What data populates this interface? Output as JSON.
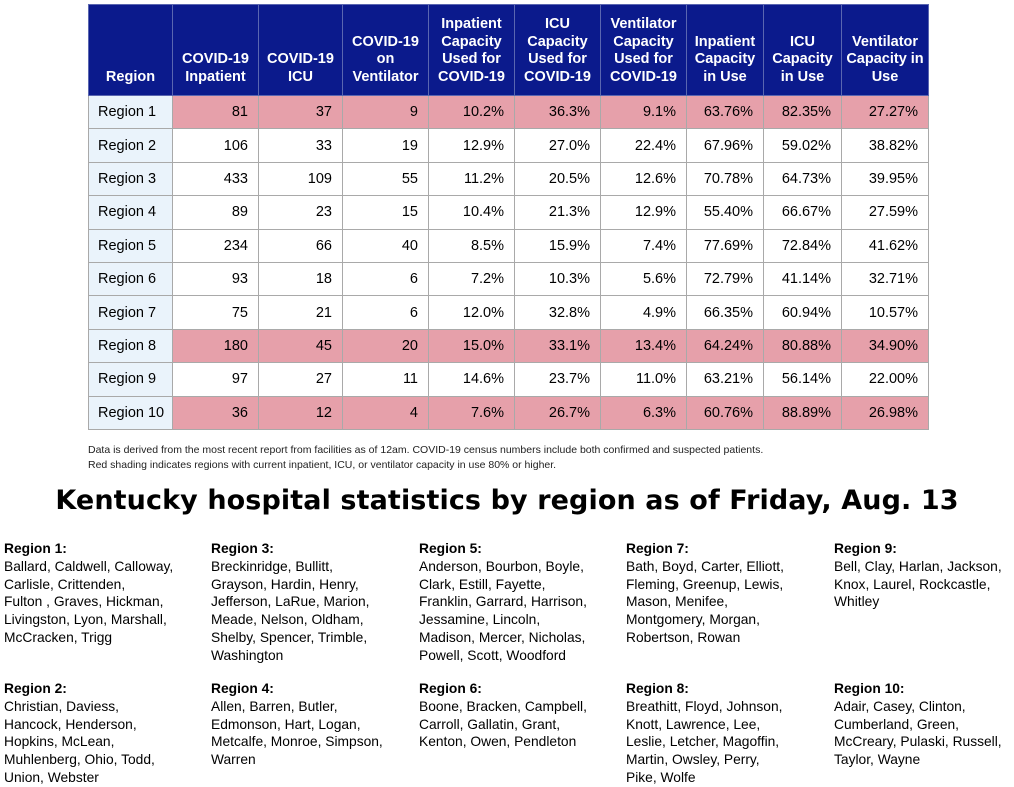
{
  "table": {
    "headers": [
      "Region",
      "COVID-19 Inpatient",
      "COVID-19 ICU",
      "COVID-19 on Ventilator",
      "Inpatient Capacity Used for COVID-19",
      "ICU Capacity Used for COVID-19",
      "Ventilator Capacity Used for COVID-19",
      "Inpatient Capacity in Use",
      "ICU Capacity in Use",
      "Ventilator Capacity in Use"
    ],
    "rows": [
      {
        "highlight": true,
        "cells": [
          "Region 1",
          "81",
          "37",
          "9",
          "10.2%",
          "36.3%",
          "9.1%",
          "63.76%",
          "82.35%",
          "27.27%"
        ]
      },
      {
        "highlight": false,
        "cells": [
          "Region 2",
          "106",
          "33",
          "19",
          "12.9%",
          "27.0%",
          "22.4%",
          "67.96%",
          "59.02%",
          "38.82%"
        ]
      },
      {
        "highlight": false,
        "cells": [
          "Region 3",
          "433",
          "109",
          "55",
          "11.2%",
          "20.5%",
          "12.6%",
          "70.78%",
          "64.73%",
          "39.95%"
        ]
      },
      {
        "highlight": false,
        "cells": [
          "Region 4",
          "89",
          "23",
          "15",
          "10.4%",
          "21.3%",
          "12.9%",
          "55.40%",
          "66.67%",
          "27.59%"
        ]
      },
      {
        "highlight": false,
        "cells": [
          "Region 5",
          "234",
          "66",
          "40",
          "8.5%",
          "15.9%",
          "7.4%",
          "77.69%",
          "72.84%",
          "41.62%"
        ]
      },
      {
        "highlight": false,
        "cells": [
          "Region 6",
          "93",
          "18",
          "6",
          "7.2%",
          "10.3%",
          "5.6%",
          "72.79%",
          "41.14%",
          "32.71%"
        ]
      },
      {
        "highlight": false,
        "cells": [
          "Region 7",
          "75",
          "21",
          "6",
          "12.0%",
          "32.8%",
          "4.9%",
          "66.35%",
          "60.94%",
          "10.57%"
        ]
      },
      {
        "highlight": true,
        "cells": [
          "Region 8",
          "180",
          "45",
          "20",
          "15.0%",
          "33.1%",
          "13.4%",
          "64.24%",
          "80.88%",
          "34.90%"
        ]
      },
      {
        "highlight": false,
        "cells": [
          "Region 9",
          "97",
          "27",
          "11",
          "14.6%",
          "23.7%",
          "11.0%",
          "63.21%",
          "56.14%",
          "22.00%"
        ]
      },
      {
        "highlight": true,
        "cells": [
          "Region 10",
          "36",
          "12",
          "4",
          "7.6%",
          "26.7%",
          "6.3%",
          "60.76%",
          "88.89%",
          "26.98%"
        ]
      }
    ]
  },
  "notes": {
    "line1": "Data is derived from the most recent report from facilities as of 12am. COVID-19 census numbers include both confirmed and suspected patients.",
    "line2": "Red shading indicates regions with current inpatient, ICU, or ventilator capacity in use 80% or higher."
  },
  "title": "Kentucky hospital statistics by region as of Friday, Aug. 13",
  "county_groups": [
    {
      "region": "Region 1:",
      "lines": [
        "Ballard, Caldwell, Calloway,",
        "Carlisle, Crittenden,",
        "Fulton , Graves, Hickman,",
        "Livingston, Lyon, Marshall,",
        "McCracken, Trigg"
      ]
    },
    {
      "region": "Region 3:",
      "lines": [
        "Breckinridge, Bullitt,",
        "Grayson, Hardin, Henry,",
        "Jefferson, LaRue, Marion,",
        "Meade, Nelson, Oldham,",
        "Shelby, Spencer, Trimble,",
        "Washington"
      ]
    },
    {
      "region": "Region 5:",
      "lines": [
        "Anderson, Bourbon, Boyle,",
        "Clark, Estill, Fayette,",
        "Franklin, Garrard, Harrison,",
        "Jessamine, Lincoln,",
        "Madison, Mercer, Nicholas,",
        "Powell, Scott, Woodford"
      ]
    },
    {
      "region": "Region 7:",
      "lines": [
        "Bath, Boyd, Carter, Elliott,",
        "Fleming, Greenup, Lewis,",
        "Mason, Menifee,",
        "Montgomery, Morgan,",
        "Robertson, Rowan"
      ]
    },
    {
      "region": "Region 9:",
      "lines": [
        "Bell, Clay, Harlan, Jackson,",
        "Knox, Laurel, Rockcastle,",
        "Whitley"
      ]
    },
    {
      "region": "Region 2:",
      "lines": [
        "Christian, Daviess,",
        "Hancock, Henderson,",
        "Hopkins, McLean,",
        "Muhlenberg, Ohio, Todd,",
        "Union, Webster"
      ]
    },
    {
      "region": "Region 4:",
      "lines": [
        "Allen, Barren, Butler,",
        "Edmonson, Hart, Logan,",
        "Metcalfe, Monroe, Simpson,",
        "Warren"
      ]
    },
    {
      "region": "Region 6:",
      "lines": [
        "Boone, Bracken, Campbell,",
        "Carroll, Gallatin, Grant,",
        "Kenton, Owen, Pendleton"
      ]
    },
    {
      "region": "Region 8:",
      "lines": [
        "Breathitt, Floyd, Johnson,",
        "Knott, Lawrence, Lee,",
        "Leslie, Letcher, Magoffin,",
        "Martin, Owsley, Perry,",
        "Pike, Wolfe"
      ]
    },
    {
      "region": "Region 10:",
      "lines": [
        "Adair, Casey, Clinton,",
        "Cumberland, Green,",
        "McCreary, Pulaski, Russell,",
        "Taylor, Wayne"
      ]
    }
  ]
}
